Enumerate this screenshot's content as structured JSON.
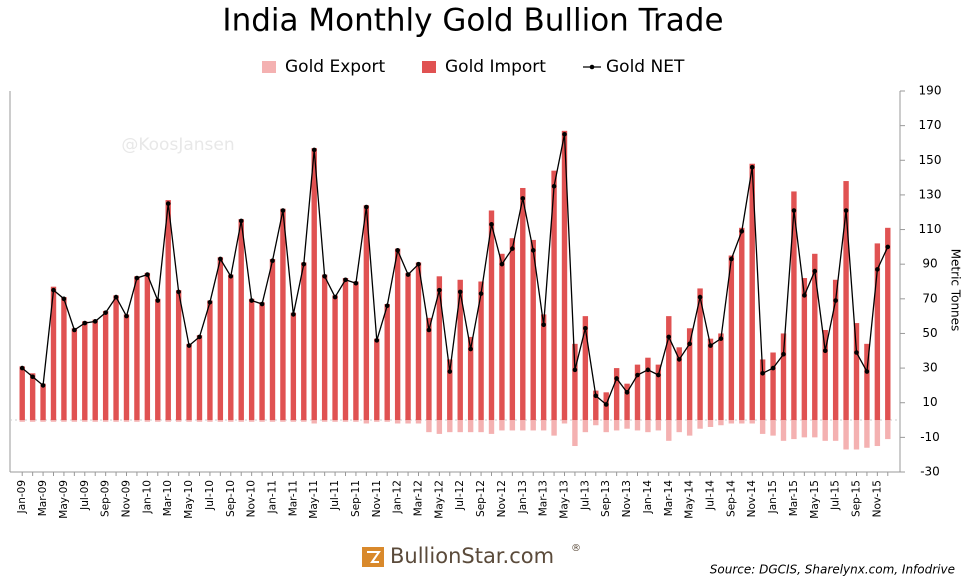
{
  "chart_data": {
    "type": "bar",
    "title": "India Monthly Gold Bullion Trade",
    "y_label": "Metric Tonnes",
    "watermark": "@KoosJansen",
    "logo": "BullionStar.com",
    "logo_mark": "®",
    "source": "Source: DGCIS, Sharelynx.com, Infodrive",
    "categories": [
      "Jan-09",
      null,
      "Mar-09",
      null,
      "May-09",
      null,
      "Jul-09",
      null,
      "Sep-09",
      null,
      "Nov-09",
      null,
      "Jan-10",
      null,
      "Mar-10",
      null,
      "May-10",
      null,
      "Jul-10",
      null,
      "Sep-10",
      null,
      "Nov-10",
      null,
      "Jan-11",
      null,
      "Mar-11",
      null,
      "May-11",
      null,
      "Jul-11",
      null,
      "Sep-11",
      null,
      "Nov-11",
      null,
      "Jan-12",
      null,
      "Mar-12",
      null,
      "May-12",
      null,
      "Jul-12",
      null,
      "Sep-12",
      null,
      "Nov-12",
      null,
      "Jan-13",
      null,
      "Mar-13",
      null,
      "May-13",
      null,
      "Jul-13",
      null,
      "Sep-13",
      null,
      "Nov-13",
      null,
      "Jan-14",
      null,
      "Mar-14",
      null,
      "May-14",
      null,
      "Jul-14",
      null,
      "Sep-14",
      null,
      "Nov-14",
      null,
      "Jan-15",
      null,
      "Mar-15",
      null,
      "May-15",
      null,
      "Jul-15",
      null,
      "Sep-15",
      null,
      "Nov-15",
      null
    ],
    "series": [
      {
        "name": "Gold Export",
        "type": "bar",
        "color": "#f4b1b1",
        "values": [
          -1,
          -1,
          -1,
          -1,
          -1,
          -1,
          -1,
          -1,
          -1,
          -1,
          -1,
          -1,
          -1,
          -1,
          -1,
          -1,
          -1,
          -1,
          -1,
          -1,
          -1,
          -1,
          -1,
          -1,
          -1,
          -1,
          -1,
          -1,
          -2,
          -1,
          -1,
          -1,
          -1,
          -2,
          -1,
          -1,
          -2,
          -2,
          -2,
          -7,
          -8,
          -7,
          -7,
          -7,
          -7,
          -8,
          -6,
          -6,
          -6,
          -6,
          -6,
          -9,
          -2,
          -15,
          -7,
          -3,
          -7,
          -6,
          -5,
          -6,
          -7,
          -6,
          -12,
          -7,
          -9,
          -5,
          -4,
          -3,
          -2,
          -2,
          -2,
          -8,
          -9,
          -12,
          -11,
          -10,
          -10,
          -12,
          -12,
          -17,
          -17,
          -16,
          -15,
          -11
        ]
      },
      {
        "name": "Gold Import",
        "type": "bar",
        "color": "#e05252",
        "values": [
          31,
          27,
          21,
          77,
          71,
          53,
          57,
          58,
          63,
          72,
          61,
          83,
          85,
          70,
          127,
          75,
          44,
          49,
          69,
          94,
          84,
          116,
          70,
          68,
          93,
          122,
          62,
          91,
          157,
          84,
          72,
          82,
          80,
          124,
          47,
          67,
          99,
          85,
          91,
          59,
          83,
          35,
          81,
          48,
          80,
          121,
          96,
          105,
          134,
          104,
          61,
          144,
          167,
          44,
          60,
          17,
          16,
          30,
          21,
          32,
          36,
          32,
          60,
          42,
          53,
          76,
          47,
          50,
          95,
          111,
          148,
          35,
          39,
          50,
          132,
          82,
          96,
          52,
          81,
          138,
          56,
          44,
          102,
          111
        ]
      },
      {
        "name": "Gold NET",
        "type": "line",
        "color": "#000000",
        "values": [
          30,
          25,
          20,
          75,
          70,
          52,
          56,
          57,
          62,
          71,
          60,
          82,
          84,
          69,
          125,
          74,
          43,
          48,
          68,
          93,
          83,
          115,
          69,
          67,
          92,
          121,
          61,
          90,
          156,
          83,
          71,
          81,
          79,
          123,
          46,
          66,
          98,
          84,
          90,
          52,
          75,
          28,
          74,
          41,
          73,
          113,
          90,
          99,
          128,
          98,
          55,
          135,
          165,
          29,
          53,
          14,
          9,
          24,
          16,
          26,
          29,
          26,
          48,
          35,
          44,
          71,
          43,
          47,
          93,
          109,
          146,
          27,
          30,
          38,
          121,
          72,
          86,
          40,
          69,
          121,
          39,
          28,
          87,
          100
        ]
      }
    ],
    "ylim": [
      -30,
      190
    ],
    "yticks": [
      -30,
      -10,
      10,
      30,
      50,
      70,
      90,
      110,
      130,
      150,
      170,
      190
    ],
    "legend": "top"
  }
}
